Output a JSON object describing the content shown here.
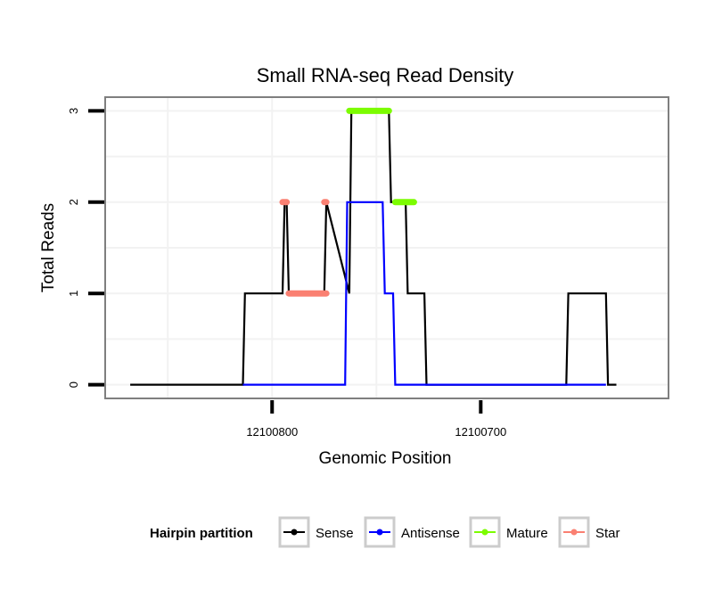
{
  "chart_data": {
    "type": "line",
    "title": "Small RNA-seq Read Density",
    "xlabel": "Genomic Position",
    "ylabel": "Total Reads",
    "xlim": [
      12100880,
      12100610
    ],
    "ylim": [
      -0.15,
      3.15
    ],
    "x_reversed": true,
    "xticks": [
      {
        "value": 12100800,
        "label": "12100800"
      },
      {
        "value": 12100700,
        "label": "12100700"
      }
    ],
    "yticks": [
      {
        "value": 0,
        "label": "0"
      },
      {
        "value": 1,
        "label": "1"
      },
      {
        "value": 2,
        "label": "2"
      },
      {
        "value": 3,
        "label": "3"
      }
    ],
    "grid": true,
    "legend": {
      "title": "Hairpin partition",
      "position": "bottom",
      "entries": [
        {
          "name": "Sense",
          "color": "#000000"
        },
        {
          "name": "Antisense",
          "color": "#0000ff"
        },
        {
          "name": "Mature",
          "color": "#7cfc00"
        },
        {
          "name": "Star",
          "color": "#fa8072"
        }
      ]
    },
    "series": [
      {
        "name": "Sense",
        "color": "#000000",
        "kind": "line",
        "x": [
          12100868,
          12100814,
          12100813,
          12100795,
          12100794,
          12100793,
          12100792,
          12100775,
          12100774,
          12100763,
          12100762,
          12100744,
          12100743,
          12100736,
          12100735,
          12100727,
          12100726,
          12100659,
          12100658,
          12100640,
          12100639,
          12100635
        ],
        "y": [
          0,
          0,
          1,
          1,
          2,
          2,
          1,
          1,
          2,
          1,
          3,
          3,
          2,
          2,
          1,
          1,
          0,
          0,
          1,
          1,
          0,
          0
        ]
      },
      {
        "name": "Antisense",
        "color": "#0000ff",
        "kind": "line",
        "x": [
          12100814,
          12100765,
          12100764,
          12100747,
          12100746,
          12100742,
          12100741,
          12100640
        ],
        "y": [
          0,
          0,
          2,
          2,
          1,
          1,
          0,
          0
        ]
      },
      {
        "name": "Mature",
        "color": "#7cfc00",
        "kind": "dots",
        "x_start": [
          12100763,
          12100741
        ],
        "x_end": [
          12100744,
          12100732
        ],
        "y": [
          3,
          2
        ]
      },
      {
        "name": "Star",
        "color": "#fa8072",
        "kind": "dots",
        "x_start": [
          12100795,
          12100792,
          12100775
        ],
        "x_end": [
          12100793,
          12100774,
          12100774
        ],
        "y": [
          2,
          1,
          2
        ]
      }
    ]
  }
}
